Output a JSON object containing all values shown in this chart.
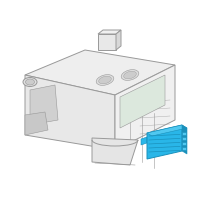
{
  "bg_color": "#ffffff",
  "dash_color": "#999999",
  "fill_color": "#f5f5f5",
  "highlight_color": "#29b6e8",
  "highlight_dark": "#1a90bb",
  "highlight_mid": "#50c8f0",
  "lw_main": 0.7,
  "lw_thin": 0.4,
  "lw_thick": 0.9
}
